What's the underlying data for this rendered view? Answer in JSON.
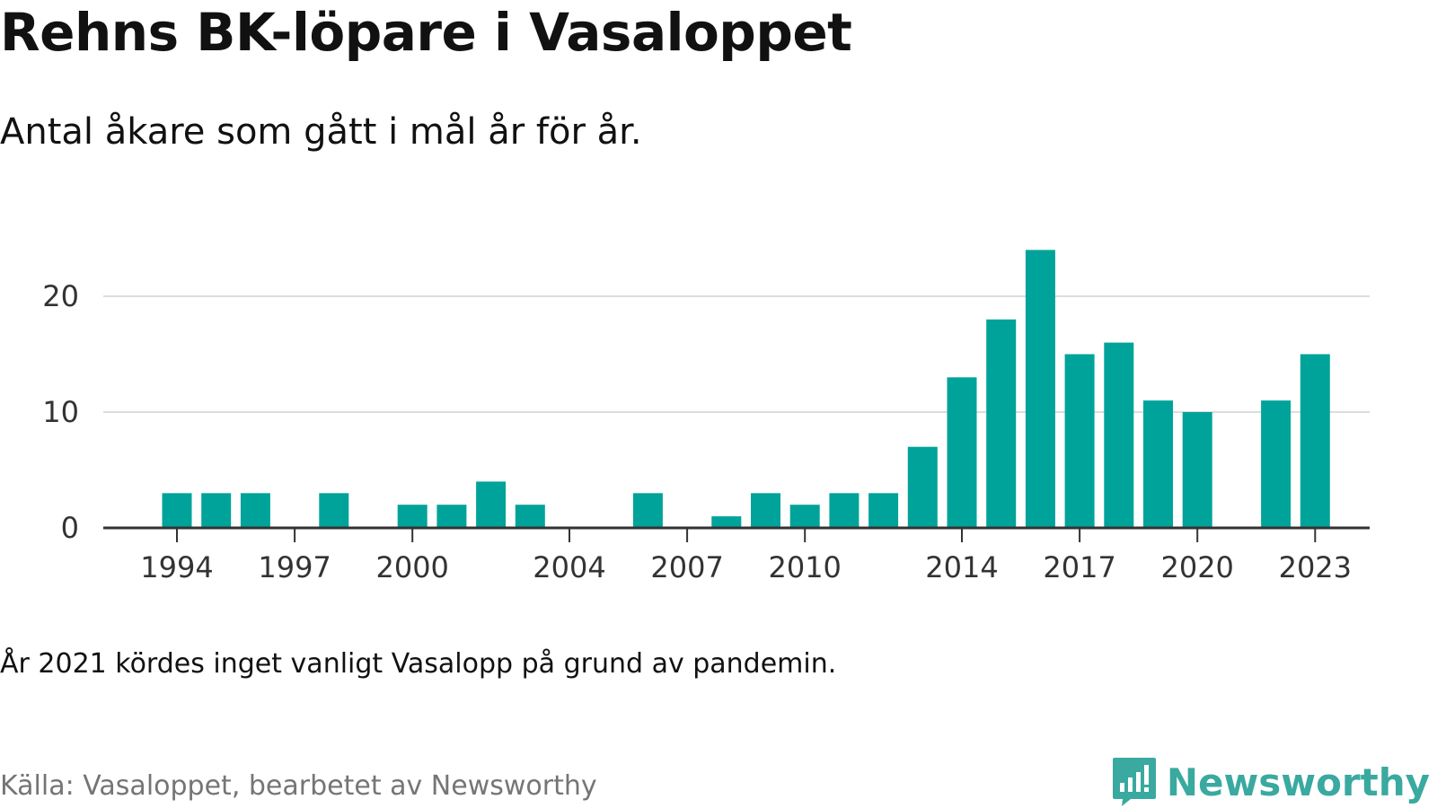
{
  "title": "Rehns BK-löpare i Vasaloppet",
  "subtitle": "Antal åkare som gått i mål år för år.",
  "note": "År 2021 kördes inget vanligt Vasalopp på grund av pandemin.",
  "source": "Källa: Vasaloppet, bearbetet av Newsworthy",
  "brand": {
    "name": "Newsworthy",
    "icon": "newsworthy-logo-icon"
  },
  "colors": {
    "bar": "#00a39a",
    "grid": "#dddddd",
    "axis": "#333333",
    "brand": "#3aa9a0"
  },
  "chart_data": {
    "type": "bar",
    "title": "Rehns BK-löpare i Vasaloppet",
    "subtitle": "Antal åkare som gått i mål år för år.",
    "xlabel": "",
    "ylabel": "",
    "x": [
      1994,
      1995,
      1996,
      1997,
      1998,
      1999,
      2000,
      2001,
      2002,
      2003,
      2004,
      2005,
      2006,
      2007,
      2008,
      2009,
      2010,
      2011,
      2012,
      2013,
      2014,
      2015,
      2016,
      2017,
      2018,
      2019,
      2020,
      2021,
      2022,
      2023
    ],
    "values": [
      3,
      3,
      3,
      0,
      3,
      0,
      2,
      2,
      4,
      2,
      0,
      0,
      3,
      0,
      1,
      3,
      2,
      3,
      3,
      7,
      13,
      18,
      24,
      15,
      16,
      11,
      10,
      0,
      11,
      15
    ],
    "xticks": [
      "1994",
      "1997",
      "2000",
      "2004",
      "2007",
      "2010",
      "2014",
      "2017",
      "2020",
      "2023"
    ],
    "yticks": [
      "0",
      "10",
      "20"
    ],
    "ylim": [
      0,
      24
    ],
    "grid": true,
    "legend": "none"
  }
}
